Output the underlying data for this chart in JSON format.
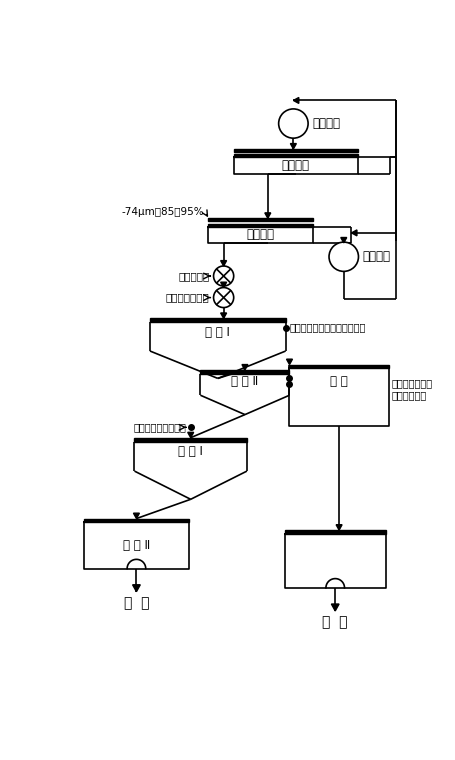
{
  "labels": {
    "stage1_grind": "一段磨矿",
    "stage1_class": "一段分级",
    "stage2_class": "二段分级",
    "stage2_grind": "二段磨矿",
    "size_label": "-74μm刈85～95%",
    "reagent1": "耦合活化剂",
    "reagent2": "捕收剂、起泡剂",
    "rough1": "粗 选 I",
    "rough2": "粗 选 Ⅱ",
    "rough1_reagent": "耦合活化剂、捕收剂、起泡剂",
    "rough2_reagent": "耦合活化剂、捕\n收剂、起泡剂",
    "scavenge": "扫 选",
    "clean1_reagent": "耦合活化剂、捕收剂",
    "clean1": "精 选 I",
    "clean2": "精 选 Ⅱ",
    "concentrate": "精  矿",
    "tailing": "尾  矿"
  },
  "fs": 8.5,
  "fs_small": 7.5,
  "fs_label": 10
}
